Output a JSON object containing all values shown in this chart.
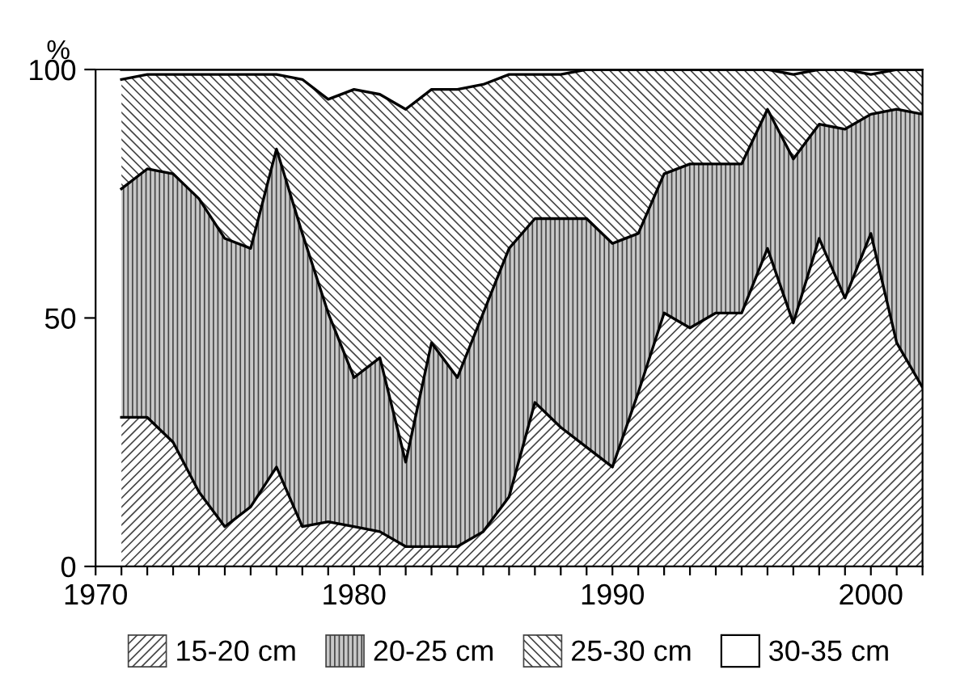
{
  "chart_data": {
    "type": "area",
    "stacked": true,
    "ylabel": "%",
    "x": [
      1971,
      1972,
      1973,
      1974,
      1975,
      1976,
      1977,
      1978,
      1979,
      1980,
      1981,
      1982,
      1983,
      1984,
      1985,
      1986,
      1987,
      1988,
      1989,
      1990,
      1991,
      1992,
      1993,
      1994,
      1995,
      1996,
      1997,
      1998,
      1999,
      2000,
      2001,
      2002
    ],
    "series": [
      {
        "name": "15-20 cm",
        "color": "#ffffff",
        "values": [
          30,
          30,
          25,
          15,
          8,
          12,
          20,
          8,
          9,
          8,
          7,
          4,
          4,
          4,
          7,
          14,
          33,
          28,
          24,
          20,
          35,
          51,
          48,
          51,
          51,
          64,
          49,
          66,
          54,
          67,
          45,
          36
        ]
      },
      {
        "name": "20-25 cm",
        "color": "#c8c8c8",
        "values": [
          46,
          50,
          54,
          59,
          58,
          52,
          64,
          59,
          42,
          30,
          35,
          17,
          41,
          34,
          44,
          50,
          37,
          42,
          46,
          45,
          32,
          28,
          33,
          30,
          30,
          28,
          33,
          23,
          34,
          24,
          47,
          55
        ]
      },
      {
        "name": "25-30 cm",
        "color": "#ffffff",
        "values": [
          22,
          19,
          20,
          25,
          33,
          35,
          15,
          31,
          43,
          58,
          53,
          71,
          51,
          58,
          46,
          35,
          29,
          29,
          30,
          35,
          33,
          21,
          19,
          19,
          19,
          8,
          17,
          11,
          12,
          8,
          8,
          9
        ]
      },
      {
        "name": "30-35 cm",
        "color": "#ffffff",
        "values": [
          2,
          1,
          1,
          1,
          1,
          1,
          1,
          2,
          6,
          4,
          5,
          8,
          4,
          4,
          3,
          1,
          1,
          1,
          0,
          0,
          0,
          0,
          0,
          0,
          0,
          0,
          1,
          0,
          0,
          1,
          0,
          0
        ]
      }
    ],
    "xlim": [
      1970,
      2002
    ],
    "ylim": [
      0,
      100
    ],
    "yticks": [
      0,
      50,
      100
    ],
    "xticks": [
      1970,
      {
        "value": 1971,
        "label": null
      },
      {
        "value": 1972,
        "label": null
      },
      {
        "value": 1973,
        "label": null
      },
      {
        "value": 1974,
        "label": null
      },
      {
        "value": 1975,
        "label": null
      },
      {
        "value": 1976,
        "label": null
      },
      {
        "value": 1977,
        "label": null
      },
      {
        "value": 1978,
        "label": null
      },
      {
        "value": 1979,
        "label": null
      },
      1980,
      {
        "value": 1981,
        "label": null
      },
      {
        "value": 1982,
        "label": null
      },
      {
        "value": 1983,
        "label": null
      },
      {
        "value": 1984,
        "label": null
      },
      {
        "value": 1985,
        "label": null
      },
      {
        "value": 1986,
        "label": null
      },
      {
        "value": 1987,
        "label": null
      },
      {
        "value": 1988,
        "label": null
      },
      {
        "value": 1989,
        "label": null
      },
      1990,
      {
        "value": 1991,
        "label": null
      },
      {
        "value": 1992,
        "label": null
      },
      {
        "value": 1993,
        "label": null
      },
      {
        "value": 1994,
        "label": null
      },
      {
        "value": 1995,
        "label": null
      },
      {
        "value": 1996,
        "label": null
      },
      {
        "value": 1997,
        "label": null
      },
      {
        "value": 1998,
        "label": null
      },
      {
        "value": 1999,
        "label": null
      },
      2000,
      {
        "value": 2001,
        "label": null
      },
      {
        "value": 2002,
        "label": null
      }
    ],
    "grid": false,
    "legend": "bottom"
  }
}
